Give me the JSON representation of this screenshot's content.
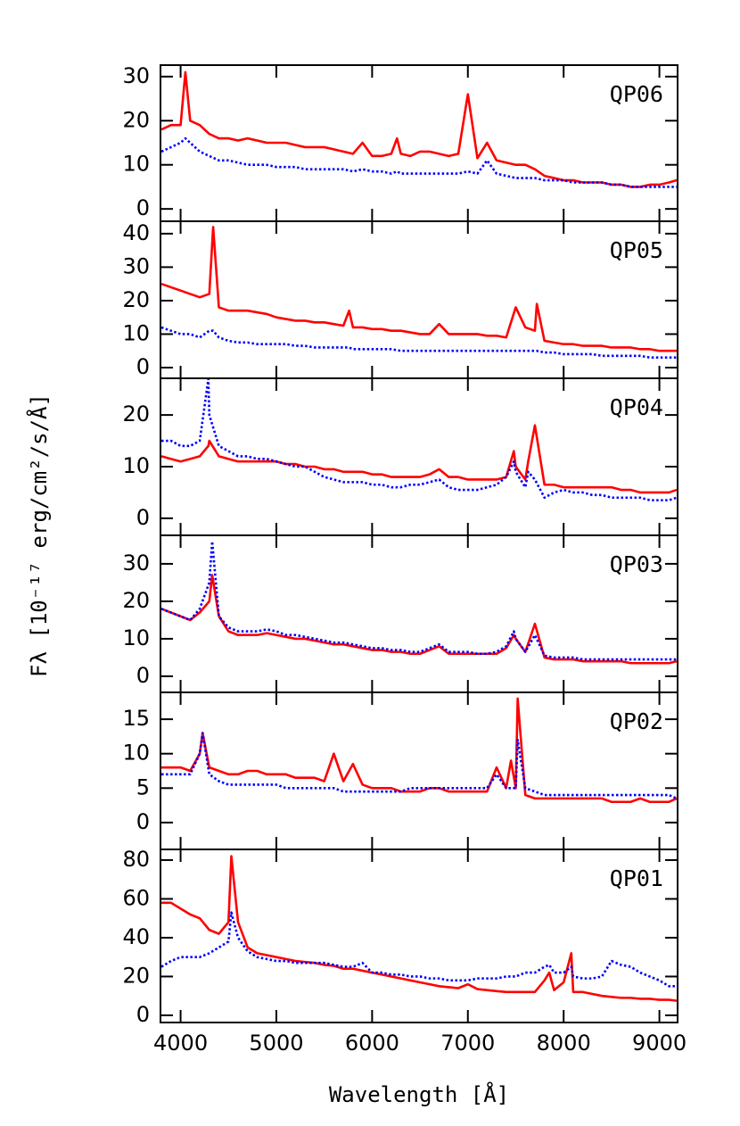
{
  "xlabel": "Wavelength [Å]",
  "ylabel": "Fλ [10⁻¹⁷ erg/cm²/s/Å]",
  "chart_data": [
    {
      "type": "line",
      "title": "QP06",
      "xlim": [
        3790,
        9190
      ],
      "xticks": [
        4000,
        5000,
        6000,
        7000,
        8000,
        9000
      ],
      "ylim": [
        -2.8,
        32.6
      ],
      "yticks": [
        0,
        10,
        20,
        30
      ],
      "x": [
        3800,
        3900,
        4000,
        4050,
        4100,
        4200,
        4300,
        4400,
        4500,
        4600,
        4700,
        4800,
        4900,
        5000,
        5100,
        5200,
        5300,
        5400,
        5500,
        5600,
        5700,
        5800,
        5900,
        6000,
        6100,
        6200,
        6260,
        6300,
        6400,
        6500,
        6600,
        6700,
        6800,
        6900,
        7000,
        7100,
        7200,
        7300,
        7400,
        7500,
        7600,
        7700,
        7800,
        7900,
        8000,
        8100,
        8200,
        8300,
        8400,
        8500,
        8600,
        8700,
        8800,
        8900,
        9000,
        9100,
        9180
      ],
      "series": [
        {
          "color": "#ff0000",
          "style": "solid",
          "values": [
            18,
            19,
            19,
            31,
            20,
            19,
            17,
            16,
            16,
            15.5,
            16,
            15.5,
            15,
            15,
            15,
            14.5,
            14,
            14,
            14,
            13.5,
            13,
            12.5,
            15,
            12,
            12,
            12.5,
            16,
            12.5,
            12,
            13,
            13,
            12.5,
            12,
            12.5,
            26,
            11.5,
            15,
            11,
            10.5,
            10,
            10,
            9,
            7.5,
            7,
            6.5,
            6.5,
            6,
            6,
            6,
            5.5,
            5.5,
            5,
            5,
            5.5,
            5.5,
            6,
            6.5
          ]
        },
        {
          "color": "#0000ff",
          "style": "dotted",
          "values": [
            13,
            14,
            15,
            16,
            15,
            13,
            12,
            11,
            11,
            10.5,
            10,
            10,
            10,
            9.5,
            9.5,
            9.5,
            9,
            9,
            9,
            9,
            9,
            8.5,
            9,
            8.5,
            8.5,
            8,
            8.5,
            8,
            8,
            8,
            8,
            8,
            8,
            8,
            8.5,
            8,
            11,
            8,
            7.5,
            7,
            7,
            7,
            6.5,
            6.5,
            6.5,
            6,
            6,
            6,
            6,
            5.5,
            5.5,
            5,
            5,
            5,
            5,
            5,
            5
          ]
        }
      ]
    },
    {
      "type": "line",
      "title": "QP05",
      "xlim": [
        3790,
        9190
      ],
      "xticks": [
        4000,
        5000,
        6000,
        7000,
        8000,
        9000
      ],
      "ylim": [
        -3.2,
        43.7
      ],
      "yticks": [
        0,
        10,
        20,
        30,
        40
      ],
      "x": [
        3800,
        3900,
        4000,
        4100,
        4200,
        4300,
        4340,
        4400,
        4500,
        4600,
        4700,
        4800,
        4900,
        5000,
        5100,
        5200,
        5300,
        5400,
        5500,
        5600,
        5700,
        5760,
        5800,
        5900,
        6000,
        6100,
        6200,
        6300,
        6400,
        6500,
        6600,
        6700,
        6800,
        6900,
        7000,
        7100,
        7200,
        7300,
        7400,
        7500,
        7600,
        7700,
        7720,
        7800,
        7900,
        8000,
        8100,
        8200,
        8300,
        8400,
        8500,
        8600,
        8700,
        8800,
        8900,
        9000,
        9100,
        9180
      ],
      "series": [
        {
          "color": "#ff0000",
          "style": "solid",
          "values": [
            25,
            24,
            23,
            22,
            21,
            22,
            42,
            18,
            17,
            17,
            17,
            16.5,
            16,
            15,
            14.5,
            14,
            14,
            13.5,
            13.5,
            13,
            12.5,
            17,
            12,
            12,
            11.5,
            11.5,
            11,
            11,
            10.5,
            10,
            10,
            13,
            10,
            10,
            10,
            10,
            9.5,
            9.5,
            9,
            18,
            12,
            11,
            19,
            8,
            7.5,
            7,
            7,
            6.5,
            6.5,
            6.5,
            6,
            6,
            6,
            5.5,
            5.5,
            5,
            5,
            5
          ]
        },
        {
          "color": "#0000ff",
          "style": "dotted",
          "values": [
            12,
            11,
            10,
            10,
            9,
            11,
            11,
            9,
            8,
            7.5,
            7.5,
            7,
            7,
            7,
            7,
            6.5,
            6.5,
            6,
            6,
            6,
            6,
            6,
            5.5,
            5.5,
            5.5,
            5.5,
            5.5,
            5,
            5,
            5,
            5,
            5,
            5,
            5,
            5,
            5,
            5,
            5,
            5,
            5,
            5,
            5,
            5,
            4.5,
            4.5,
            4,
            4,
            4,
            4,
            3.5,
            3.5,
            3.5,
            3.5,
            3.5,
            3,
            3,
            3,
            3
          ]
        }
      ]
    },
    {
      "type": "line",
      "title": "QP04",
      "xlim": [
        3790,
        9190
      ],
      "xticks": [
        4000,
        5000,
        6000,
        7000,
        8000,
        9000
      ],
      "ylim": [
        -3.3,
        27.1
      ],
      "yticks": [
        0,
        10,
        20
      ],
      "x": [
        3800,
        3900,
        4000,
        4100,
        4200,
        4290,
        4300,
        4400,
        4500,
        4600,
        4700,
        4800,
        4900,
        5000,
        5100,
        5200,
        5300,
        5400,
        5500,
        5600,
        5700,
        5800,
        5900,
        6000,
        6100,
        6200,
        6300,
        6400,
        6500,
        6600,
        6700,
        6800,
        6900,
        7000,
        7100,
        7200,
        7300,
        7400,
        7480,
        7500,
        7600,
        7630,
        7700,
        7800,
        7900,
        8000,
        8100,
        8200,
        8300,
        8400,
        8500,
        8600,
        8700,
        8800,
        8900,
        9000,
        9100,
        9180
      ],
      "series": [
        {
          "color": "#ff0000",
          "style": "solid",
          "values": [
            12,
            11.5,
            11,
            11.5,
            12,
            14,
            15,
            12,
            11.5,
            11,
            11,
            11,
            11,
            11,
            10.5,
            10.5,
            10,
            10,
            9.5,
            9.5,
            9,
            9,
            9,
            8.5,
            8.5,
            8,
            8,
            8,
            8,
            8.5,
            9.5,
            8,
            8,
            7.5,
            7.5,
            7.5,
            7.5,
            8,
            13,
            10,
            7.5,
            11,
            18,
            6.5,
            6.5,
            6,
            6,
            6,
            6,
            6,
            6,
            5.5,
            5.5,
            5,
            5,
            5,
            5,
            5.5
          ]
        },
        {
          "color": "#0000ff",
          "style": "dotted",
          "values": [
            15,
            15,
            14,
            14,
            15,
            27,
            20,
            14,
            13,
            12,
            12,
            11.5,
            11.5,
            11,
            10.5,
            10,
            10,
            9,
            8,
            7.5,
            7,
            7,
            7,
            6.5,
            6.5,
            6,
            6,
            6.5,
            6.5,
            7,
            7.5,
            6,
            5.5,
            5.5,
            5.5,
            6,
            6.5,
            8,
            11,
            9,
            6,
            9,
            7.5,
            4,
            5,
            5.5,
            5,
            5,
            4.5,
            4.5,
            4,
            4,
            4,
            4,
            3.5,
            3.5,
            3.5,
            4
          ]
        }
      ]
    },
    {
      "type": "line",
      "title": "QP03",
      "xlim": [
        3790,
        9190
      ],
      "xticks": [
        4000,
        5000,
        6000,
        7000,
        8000,
        9000
      ],
      "ylim": [
        -4.3,
        37.6
      ],
      "yticks": [
        0,
        10,
        20,
        30
      ],
      "x": [
        3800,
        3900,
        4000,
        4100,
        4200,
        4300,
        4330,
        4400,
        4500,
        4600,
        4700,
        4800,
        4900,
        5000,
        5100,
        5200,
        5300,
        5400,
        5500,
        5600,
        5700,
        5800,
        5900,
        6000,
        6100,
        6200,
        6300,
        6400,
        6500,
        6600,
        6700,
        6800,
        6900,
        7000,
        7100,
        7200,
        7300,
        7400,
        7480,
        7500,
        7600,
        7700,
        7800,
        7900,
        8000,
        8100,
        8200,
        8300,
        8400,
        8500,
        8600,
        8700,
        8800,
        8900,
        9000,
        9100,
        9180
      ],
      "series": [
        {
          "color": "#ff0000",
          "style": "solid",
          "values": [
            18,
            17,
            16,
            15,
            17,
            20,
            27,
            16,
            12,
            11,
            11,
            11,
            11.5,
            11,
            10.5,
            10,
            10,
            9.5,
            9,
            8.5,
            8.5,
            8,
            7.5,
            7,
            7,
            6.5,
            6.5,
            6,
            6,
            7,
            8,
            6,
            6,
            6,
            6,
            6,
            6,
            7.5,
            11,
            10,
            6.5,
            14,
            5,
            4.5,
            4.5,
            4.5,
            4,
            4,
            4,
            4,
            4,
            3.5,
            3.5,
            3.5,
            3.5,
            3.5,
            4
          ]
        },
        {
          "color": "#0000ff",
          "style": "dotted",
          "values": [
            18,
            17,
            16,
            15,
            18,
            25,
            36,
            16,
            13,
            12,
            12,
            12,
            12.5,
            12,
            11,
            11,
            10.5,
            10,
            9.5,
            9,
            9,
            8.5,
            8,
            7.5,
            7.5,
            7,
            7,
            6.5,
            6.5,
            7.5,
            8.5,
            6.5,
            6.5,
            6.5,
            6,
            6,
            6.5,
            8,
            12,
            10,
            6.5,
            11,
            5.5,
            5,
            5,
            5,
            4.5,
            4.5,
            4.5,
            4.5,
            4.5,
            4.5,
            4.5,
            4.5,
            4.5,
            4.5,
            4.5
          ]
        }
      ]
    },
    {
      "type": "line",
      "title": "QP02",
      "xlim": [
        3790,
        9190
      ],
      "xticks": [
        4000,
        5000,
        6000,
        7000,
        8000,
        9000
      ],
      "ylim": [
        -3.9,
        18.9
      ],
      "yticks": [
        0,
        5,
        10,
        15
      ],
      "x": [
        3800,
        3900,
        4000,
        4100,
        4200,
        4230,
        4300,
        4400,
        4500,
        4600,
        4700,
        4800,
        4900,
        5000,
        5100,
        5200,
        5300,
        5400,
        5500,
        5600,
        5700,
        5800,
        5900,
        6000,
        6100,
        6200,
        6300,
        6400,
        6500,
        6600,
        6700,
        6800,
        6900,
        7000,
        7100,
        7200,
        7300,
        7400,
        7450,
        7500,
        7520,
        7600,
        7700,
        7800,
        7900,
        8000,
        8100,
        8200,
        8300,
        8400,
        8500,
        8600,
        8700,
        8800,
        8900,
        9000,
        9100,
        9180
      ],
      "series": [
        {
          "color": "#ff0000",
          "style": "solid",
          "values": [
            8,
            8,
            8,
            7.5,
            10,
            13,
            8,
            7.5,
            7,
            7,
            7.5,
            7.5,
            7,
            7,
            7,
            6.5,
            6.5,
            6.5,
            6,
            10,
            6,
            8.5,
            5.5,
            5,
            5,
            5,
            4.5,
            4.5,
            4.5,
            5,
            5,
            4.5,
            4.5,
            4.5,
            4.5,
            4.5,
            8,
            5,
            9,
            5,
            18,
            4,
            3.5,
            3.5,
            3.5,
            3.5,
            3.5,
            3.5,
            3.5,
            3.5,
            3,
            3,
            3,
            3.5,
            3,
            3,
            3,
            3.5
          ]
        },
        {
          "color": "#0000ff",
          "style": "dotted",
          "values": [
            7,
            7,
            7,
            7,
            10,
            13,
            7,
            6,
            5.5,
            5.5,
            5.5,
            5.5,
            5.5,
            5.5,
            5,
            5,
            5,
            5,
            5,
            5,
            4.5,
            4.5,
            4.5,
            4.5,
            4.5,
            4.5,
            4.5,
            5,
            5,
            5,
            5,
            5,
            5,
            5,
            5,
            5,
            7,
            5,
            5,
            5,
            12,
            5,
            4.5,
            4,
            4,
            4,
            4,
            4,
            4,
            4,
            4,
            4,
            4,
            4,
            4,
            4,
            4,
            3.5
          ]
        }
      ]
    },
    {
      "type": "line",
      "title": "QP01",
      "xlim": [
        3790,
        9190
      ],
      "xticks": [
        4000,
        5000,
        6000,
        7000,
        8000,
        9000
      ],
      "ylim": [
        -3.7,
        85.5
      ],
      "yticks": [
        0,
        20,
        40,
        60,
        80
      ],
      "x": [
        3800,
        3900,
        4000,
        4100,
        4200,
        4300,
        4400,
        4500,
        4530,
        4600,
        4700,
        4800,
        4900,
        5000,
        5100,
        5200,
        5300,
        5400,
        5500,
        5600,
        5700,
        5800,
        5900,
        6000,
        6100,
        6200,
        6300,
        6400,
        6500,
        6600,
        6700,
        6800,
        6900,
        7000,
        7100,
        7200,
        7300,
        7400,
        7500,
        7600,
        7700,
        7800,
        7850,
        7900,
        8000,
        8080,
        8100,
        8200,
        8300,
        8400,
        8500,
        8600,
        8700,
        8800,
        8900,
        9000,
        9100,
        9180
      ],
      "series": [
        {
          "color": "#ff0000",
          "style": "solid",
          "values": [
            58,
            58,
            55,
            52,
            50,
            44,
            42,
            48,
            82,
            48,
            35,
            32,
            31,
            30,
            29,
            28,
            27.5,
            27,
            26,
            25.5,
            24,
            24,
            23,
            22,
            21,
            20,
            19,
            18,
            17,
            16,
            15,
            14.5,
            14,
            16,
            13.5,
            13,
            12.5,
            12,
            12,
            12,
            12,
            18,
            22,
            13,
            17,
            32,
            12,
            12,
            11,
            10,
            9.5,
            9,
            9,
            8.5,
            8.5,
            8,
            8,
            7.5
          ]
        },
        {
          "color": "#0000ff",
          "style": "dotted",
          "values": [
            25,
            28,
            30,
            30,
            30,
            32,
            35,
            38,
            53,
            40,
            33,
            30,
            29,
            28,
            28,
            27,
            27,
            27,
            27,
            26,
            25,
            25,
            27,
            22,
            22,
            21,
            21,
            20,
            20,
            19,
            19,
            18,
            18,
            18,
            19,
            19,
            19,
            20,
            20,
            22,
            22,
            25,
            26,
            22,
            22,
            25,
            20,
            19,
            19,
            20,
            28,
            26,
            25,
            22,
            20,
            18,
            15,
            15
          ]
        }
      ]
    }
  ]
}
